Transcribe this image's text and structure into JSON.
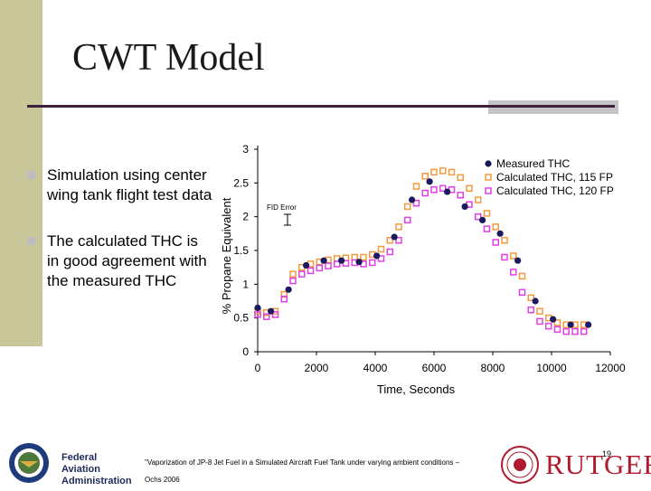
{
  "slide": {
    "title": "CWT Model"
  },
  "bullets": [
    "Simulation using center wing tank flight test data",
    "The calculated THC is in good agreement with the measured THC"
  ],
  "footer": {
    "faa_line1": "Federal Aviation",
    "faa_line2": "Administration",
    "footnote_line1": "\"Vaporization of JP-8 Jet Fuel in a Simulated Aircraft Fuel Tank under varying ambient conditions –",
    "footnote_line2": "Ochs 2006",
    "page_number": "19",
    "rutgers": "RUTGERS"
  },
  "colors": {
    "accent_bar": "#c9c79a",
    "rule": "#3d1f3a",
    "measured": "#1c1a5e",
    "calc115": "#f39a3e",
    "calc120": "#e040e8"
  },
  "chart_data": {
    "type": "scatter",
    "xlabel": "Time, Seconds",
    "ylabel": "% Propane Equivalent",
    "xlim": [
      0,
      12000
    ],
    "ylim": [
      0,
      3
    ],
    "xticks": [
      "0",
      "2000",
      "4000",
      "6000",
      "8000",
      "10000",
      "12000"
    ],
    "yticks": [
      "0",
      "0.5",
      "1",
      "1.5",
      "2",
      "2.5",
      "3"
    ],
    "annotation": "FID Error",
    "legend_position": "top-right",
    "series": [
      {
        "name": "Measured THC",
        "marker": "circle",
        "x": [
          0,
          450,
          1050,
          1650,
          2250,
          2850,
          3450,
          4050,
          4650,
          5250,
          5850,
          6450,
          7050,
          7650,
          8250,
          8850,
          9450,
          10050,
          10650,
          11250
        ],
        "y": [
          0.65,
          0.6,
          0.92,
          1.28,
          1.35,
          1.35,
          1.33,
          1.42,
          1.7,
          2.25,
          2.52,
          2.37,
          2.15,
          1.95,
          1.75,
          1.35,
          0.75,
          0.48,
          0.4,
          0.4
        ]
      },
      {
        "name": "Calculated THC, 115 FP",
        "marker": "square",
        "x": [
          0,
          300,
          600,
          900,
          1200,
          1500,
          1800,
          2100,
          2400,
          2700,
          3000,
          3300,
          3600,
          3900,
          4200,
          4500,
          4800,
          5100,
          5400,
          5700,
          6000,
          6300,
          6600,
          6900,
          7200,
          7500,
          7800,
          8100,
          8400,
          8700,
          9000,
          9300,
          9600,
          9900,
          10200,
          10500,
          10800,
          11100
        ],
        "y": [
          0.6,
          0.58,
          0.6,
          0.85,
          1.15,
          1.25,
          1.3,
          1.33,
          1.36,
          1.38,
          1.39,
          1.4,
          1.4,
          1.44,
          1.52,
          1.65,
          1.85,
          2.15,
          2.45,
          2.6,
          2.66,
          2.68,
          2.66,
          2.58,
          2.42,
          2.25,
          2.05,
          1.85,
          1.65,
          1.42,
          1.12,
          0.8,
          0.6,
          0.5,
          0.43,
          0.4,
          0.4,
          0.4
        ]
      },
      {
        "name": "Calculated THC, 120 FP",
        "marker": "square",
        "x": [
          0,
          300,
          600,
          900,
          1200,
          1500,
          1800,
          2100,
          2400,
          2700,
          3000,
          3300,
          3600,
          3900,
          4200,
          4500,
          4800,
          5100,
          5400,
          5700,
          6000,
          6300,
          6600,
          6900,
          7200,
          7500,
          7800,
          8100,
          8400,
          8700,
          9000,
          9300,
          9600,
          9900,
          10200,
          10500,
          10800,
          11100
        ],
        "y": [
          0.55,
          0.52,
          0.55,
          0.78,
          1.05,
          1.15,
          1.2,
          1.24,
          1.27,
          1.3,
          1.31,
          1.32,
          1.3,
          1.32,
          1.38,
          1.48,
          1.65,
          1.95,
          2.2,
          2.35,
          2.4,
          2.42,
          2.4,
          2.32,
          2.18,
          2.0,
          1.82,
          1.62,
          1.4,
          1.18,
          0.88,
          0.62,
          0.45,
          0.38,
          0.33,
          0.3,
          0.3,
          0.3
        ]
      }
    ]
  }
}
